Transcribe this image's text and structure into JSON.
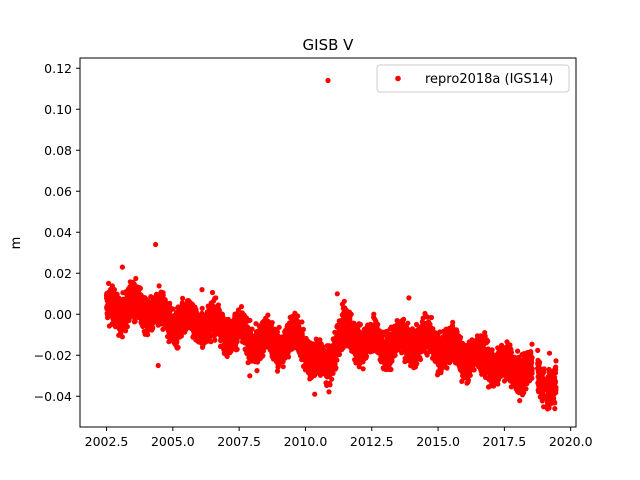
{
  "chart_data": {
    "type": "scatter",
    "title": "GISB V",
    "xlabel": "",
    "ylabel": "m",
    "xlim": [
      2001.5,
      2020.2
    ],
    "ylim": [
      -0.055,
      0.125
    ],
    "xticks": [
      2002.5,
      2005.0,
      2007.5,
      2010.0,
      2012.5,
      2015.0,
      2017.5,
      2020.0
    ],
    "xtick_labels": [
      "2002.5",
      "2005.0",
      "2007.5",
      "2010.0",
      "2012.5",
      "2015.0",
      "2017.5",
      "2020.0"
    ],
    "yticks": [
      -0.04,
      -0.02,
      0.0,
      0.02,
      0.04,
      0.06,
      0.08,
      0.1,
      0.12
    ],
    "ytick_labels": [
      "−0.04",
      "−0.02",
      "0.00",
      "0.02",
      "0.04",
      "0.06",
      "0.08",
      "0.10",
      "0.12"
    ],
    "grid": false,
    "legend_position": "top-right",
    "series": [
      {
        "name": "repro2018a (IGS14)",
        "color": "#ff0000",
        "trend_knots": [
          [
            2002.5,
            0.001
          ],
          [
            2003.0,
            0.004
          ],
          [
            2004.0,
            0.002
          ],
          [
            2005.0,
            -0.003
          ],
          [
            2006.0,
            -0.004
          ],
          [
            2007.0,
            -0.007
          ],
          [
            2008.0,
            -0.013
          ],
          [
            2009.0,
            -0.014
          ],
          [
            2009.8,
            -0.012
          ],
          [
            2010.4,
            -0.024
          ],
          [
            2010.8,
            -0.026
          ],
          [
            2011.3,
            -0.009
          ],
          [
            2012.0,
            -0.012
          ],
          [
            2013.0,
            -0.015
          ],
          [
            2014.0,
            -0.012
          ],
          [
            2015.0,
            -0.015
          ],
          [
            2016.0,
            -0.02
          ],
          [
            2017.0,
            -0.022
          ],
          [
            2017.5,
            -0.026
          ],
          [
            2018.5,
            -0.028
          ],
          [
            2019.45,
            -0.036
          ]
        ],
        "outliers": [
          [
            2010.85,
            0.114
          ],
          [
            2004.35,
            0.034
          ],
          [
            2003.1,
            0.023
          ],
          [
            2004.45,
            -0.025
          ],
          [
            2010.35,
            -0.039
          ],
          [
            2019.4,
            -0.046
          ],
          [
            2019.2,
            -0.019
          ],
          [
            2018.0,
            -0.018
          ],
          [
            2007.9,
            -0.03
          ],
          [
            2013.9,
            0.008
          ],
          [
            2006.1,
            0.012
          ],
          [
            2011.2,
            0.01
          ]
        ],
        "gaps": [
          [
            2018.55,
            2018.75
          ],
          [
            2019.0,
            2019.1
          ]
        ]
      }
    ]
  }
}
